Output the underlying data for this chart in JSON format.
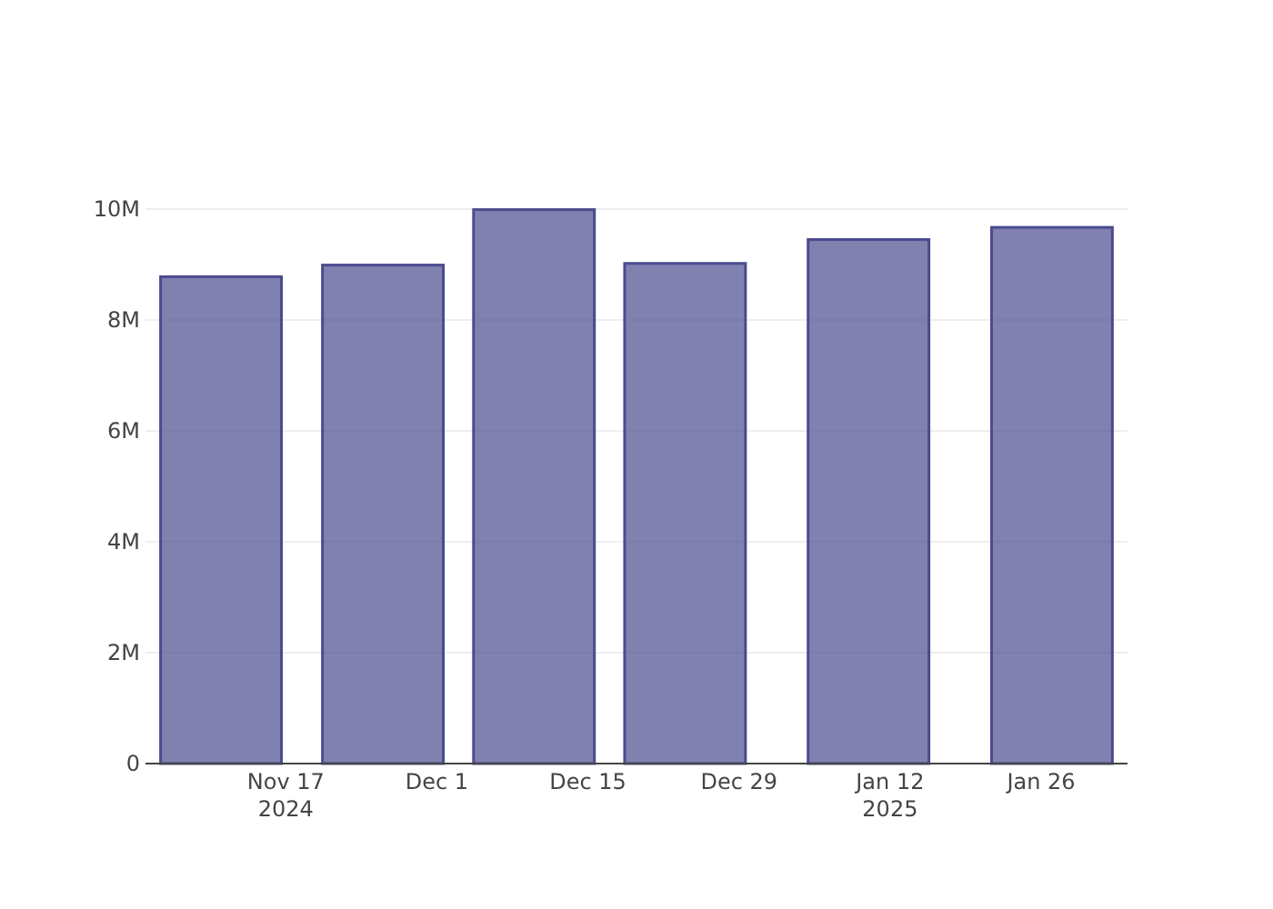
{
  "chart_data": {
    "type": "bar",
    "x": [
      "2024-11-11",
      "2024-11-26",
      "2024-12-10",
      "2024-12-24",
      "2025-01-10",
      "2025-01-27"
    ],
    "values": [
      8780000,
      8990000,
      9990000,
      9020000,
      9450000,
      9670000
    ],
    "color": "#4b4b8f",
    "xlim": [
      "2024-11-04",
      "2025-02-03"
    ],
    "xticks": [
      {
        "value": "2024-11-17",
        "label": "Nov 17\n2024"
      },
      {
        "value": "2024-12-01",
        "label": "Dec 1"
      },
      {
        "value": "2024-12-15",
        "label": "Dec 15"
      },
      {
        "value": "2024-12-29",
        "label": "Dec 29"
      },
      {
        "value": "2025-01-12",
        "label": "Jan 12\n2025"
      },
      {
        "value": "2025-01-26",
        "label": "Jan 26"
      }
    ],
    "ylim": [
      0,
      10000000
    ],
    "yticks": [
      {
        "value": 0,
        "label": "0"
      },
      {
        "value": 2000000,
        "label": "2M"
      },
      {
        "value": 4000000,
        "label": "4M"
      },
      {
        "value": 6000000,
        "label": "6M"
      },
      {
        "value": 8000000,
        "label": "8M"
      },
      {
        "value": 10000000,
        "label": "10M"
      }
    ],
    "grid": "y"
  }
}
